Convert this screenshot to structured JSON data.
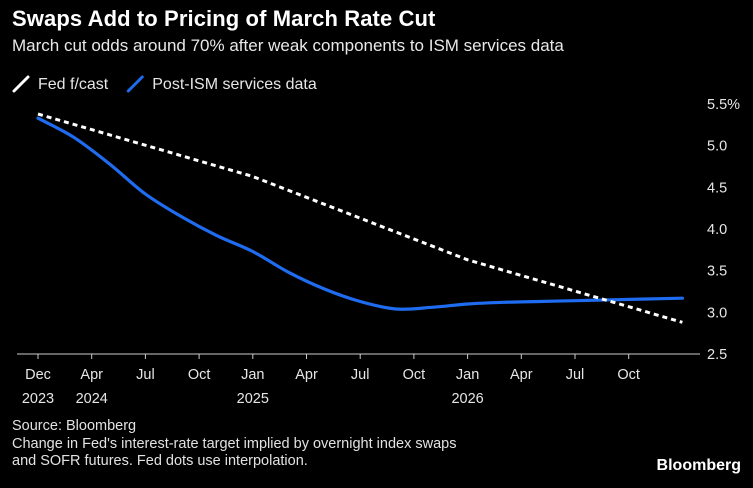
{
  "header": {
    "title": "Swaps Add to Pricing of March Rate Cut",
    "subtitle": "March cut odds around 70% after weak components to ISM services data"
  },
  "footer": {
    "source": "Source: Bloomberg",
    "note_line1": "Change in Fed's interest-rate target implied by overnight index swaps",
    "note_line2": "and SOFR futures. Fed dots use interpolation.",
    "brand": "Bloomberg"
  },
  "chart_data": {
    "type": "line",
    "title": "Swaps Add to Pricing of March Rate Cut",
    "subtitle": "March cut odds around 70% after weak components to ISM services data",
    "legend_position": "top-left",
    "grid": false,
    "ylim": [
      2.5,
      5.5
    ],
    "y_ticks": [
      "5.5%",
      "5.0",
      "4.5",
      "4.0",
      "3.5",
      "3.0",
      "2.5"
    ],
    "x_ticks": [
      {
        "label": "Dec",
        "year": "2023"
      },
      {
        "label": "Apr",
        "year": "2024"
      },
      {
        "label": "Jul",
        "year": ""
      },
      {
        "label": "Oct",
        "year": ""
      },
      {
        "label": "Jan",
        "year": "2025"
      },
      {
        "label": "Apr",
        "year": ""
      },
      {
        "label": "Jul",
        "year": ""
      },
      {
        "label": "Oct",
        "year": ""
      },
      {
        "label": "Jan",
        "year": "2026"
      },
      {
        "label": "Apr",
        "year": ""
      },
      {
        "label": "Jul",
        "year": ""
      },
      {
        "label": "Oct",
        "year": ""
      }
    ],
    "series": [
      {
        "name": "Fed f/cast",
        "color": "#ffffff",
        "style": "dashed",
        "points": [
          {
            "x": "2023-12",
            "y": 5.38
          },
          {
            "x": "2024-12",
            "y": 4.63
          },
          {
            "x": "2025-12",
            "y": 3.63
          },
          {
            "x": "2026-12",
            "y": 2.88
          }
        ]
      },
      {
        "name": "Post-ISM services data",
        "color": "#1f6cf0",
        "style": "solid",
        "points": [
          {
            "x": "2023-12",
            "y": 5.33
          },
          {
            "x": "2024-02",
            "y": 5.1
          },
          {
            "x": "2024-04",
            "y": 4.78
          },
          {
            "x": "2024-06",
            "y": 4.42
          },
          {
            "x": "2024-08",
            "y": 4.15
          },
          {
            "x": "2024-10",
            "y": 3.92
          },
          {
            "x": "2024-12",
            "y": 3.73
          },
          {
            "x": "2025-02",
            "y": 3.48
          },
          {
            "x": "2025-04",
            "y": 3.28
          },
          {
            "x": "2025-06",
            "y": 3.13
          },
          {
            "x": "2025-08",
            "y": 3.04
          },
          {
            "x": "2025-10",
            "y": 3.06
          },
          {
            "x": "2025-12",
            "y": 3.1
          },
          {
            "x": "2026-02",
            "y": 3.12
          },
          {
            "x": "2026-04",
            "y": 3.13
          },
          {
            "x": "2026-06",
            "y": 3.14
          },
          {
            "x": "2026-08",
            "y": 3.15
          },
          {
            "x": "2026-10",
            "y": 3.16
          },
          {
            "x": "2026-12",
            "y": 3.17
          }
        ]
      }
    ]
  }
}
